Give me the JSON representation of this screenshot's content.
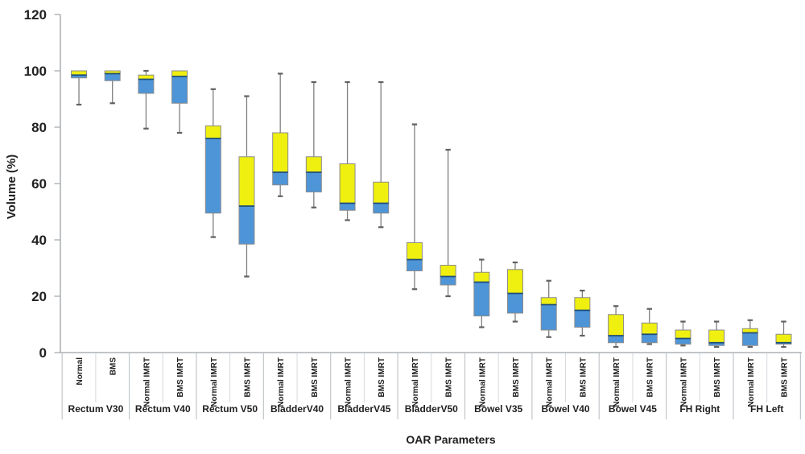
{
  "chart_data": {
    "type": "boxplot",
    "title": "",
    "xlabel": "OAR Parameters",
    "ylabel": "Volume (%)",
    "ylim": [
      0,
      120
    ],
    "yticks": [
      0,
      20,
      40,
      60,
      80,
      100,
      120
    ],
    "grid": false,
    "legend": "none",
    "box_encoding": {
      "upper_segment": "median to Q3 (yellow)",
      "lower_segment": "Q1 to median (blue)"
    },
    "colors": {
      "upper_box": "#EFEF10",
      "lower_box": "#4E95D8",
      "box_border": "#8C8C8C",
      "median": "#1F4E79",
      "whisker": "#7F7F7F",
      "whisker_cap": "#616161",
      "axis": "#AEB2B5",
      "divider_group": "#C2C6CA",
      "divider_sub": "#D6D9DC",
      "text": "#212121"
    },
    "groups": [
      {
        "label": "Rectum V30",
        "boxes": [
          {
            "series": "Normal",
            "low": 88,
            "q1": 97.5,
            "median": 98.5,
            "q3": 100,
            "high": 100
          },
          {
            "series": "BMS",
            "low": 88.5,
            "q1": 96.5,
            "median": 99,
            "q3": 100,
            "high": 100
          }
        ]
      },
      {
        "label": "Rectum V40",
        "boxes": [
          {
            "series": "Normal IMRT",
            "low": 79.5,
            "q1": 92,
            "median": 97,
            "q3": 98.5,
            "high": 100
          },
          {
            "series": "BMS IMRT",
            "low": 78,
            "q1": 88.5,
            "median": 98,
            "q3": 100,
            "high": 100
          }
        ]
      },
      {
        "label": "Rectum V50",
        "boxes": [
          {
            "series": "Normal IMRT",
            "low": 41,
            "q1": 49.5,
            "median": 76,
            "q3": 80.5,
            "high": 93.5
          },
          {
            "series": "BMS IMRT",
            "low": 27,
            "q1": 38.5,
            "median": 52,
            "q3": 69.5,
            "high": 91
          }
        ]
      },
      {
        "label": "BladderV40",
        "boxes": [
          {
            "series": "Normal IMRT",
            "low": 55.5,
            "q1": 59.5,
            "median": 64,
            "q3": 78,
            "high": 99
          },
          {
            "series": "BMS IMRT",
            "low": 51.5,
            "q1": 57,
            "median": 64,
            "q3": 69.5,
            "high": 96
          }
        ]
      },
      {
        "label": "BladderV45",
        "boxes": [
          {
            "series": "Normal IMRT",
            "low": 47,
            "q1": 50.5,
            "median": 53,
            "q3": 67,
            "high": 96
          },
          {
            "series": "BMS IMRT",
            "low": 44.5,
            "q1": 49.5,
            "median": 53,
            "q3": 60.5,
            "high": 96
          }
        ]
      },
      {
        "label": "BladderV50",
        "boxes": [
          {
            "series": "Normal IMRT",
            "low": 22.5,
            "q1": 29,
            "median": 33,
            "q3": 39,
            "high": 81
          },
          {
            "series": "BMS IMRT",
            "low": 20,
            "q1": 24,
            "median": 27,
            "q3": 31,
            "high": 72
          }
        ]
      },
      {
        "label": "Bowel V35",
        "boxes": [
          {
            "series": "Normal IMRT",
            "low": 9,
            "q1": 13,
            "median": 25,
            "q3": 28.5,
            "high": 33
          },
          {
            "series": "BMS IMRT",
            "low": 11,
            "q1": 14,
            "median": 21,
            "q3": 29.5,
            "high": 32
          }
        ]
      },
      {
        "label": "Bowel V40",
        "boxes": [
          {
            "series": "Normal IMRT",
            "low": 5.5,
            "q1": 8,
            "median": 17,
            "q3": 19.5,
            "high": 25.5
          },
          {
            "series": "BMS IMRT",
            "low": 6,
            "q1": 9,
            "median": 15,
            "q3": 19.5,
            "high": 22
          }
        ]
      },
      {
        "label": "Bowel V45",
        "boxes": [
          {
            "series": "Normal IMRT",
            "low": 2,
            "q1": 3.5,
            "median": 6,
            "q3": 13.5,
            "high": 16.5
          },
          {
            "series": "BMS IMRT",
            "low": 3,
            "q1": 3.5,
            "median": 6.5,
            "q3": 10.5,
            "high": 15.5
          }
        ]
      },
      {
        "label": "FH Right",
        "boxes": [
          {
            "series": "Normal IMRT",
            "low": 2.5,
            "q1": 3,
            "median": 5,
            "q3": 8,
            "high": 11
          },
          {
            "series": "BMS IMRT",
            "low": 2,
            "q1": 2.5,
            "median": 3.5,
            "q3": 8,
            "high": 11
          }
        ]
      },
      {
        "label": "FH Left",
        "boxes": [
          {
            "series": "Normal IMRT",
            "low": 2,
            "q1": 2.5,
            "median": 7,
            "q3": 8.5,
            "high": 11.5
          },
          {
            "series": "BMS IMRT",
            "low": 2,
            "q1": 3,
            "median": 3.5,
            "q3": 6.5,
            "high": 11
          }
        ]
      }
    ]
  }
}
